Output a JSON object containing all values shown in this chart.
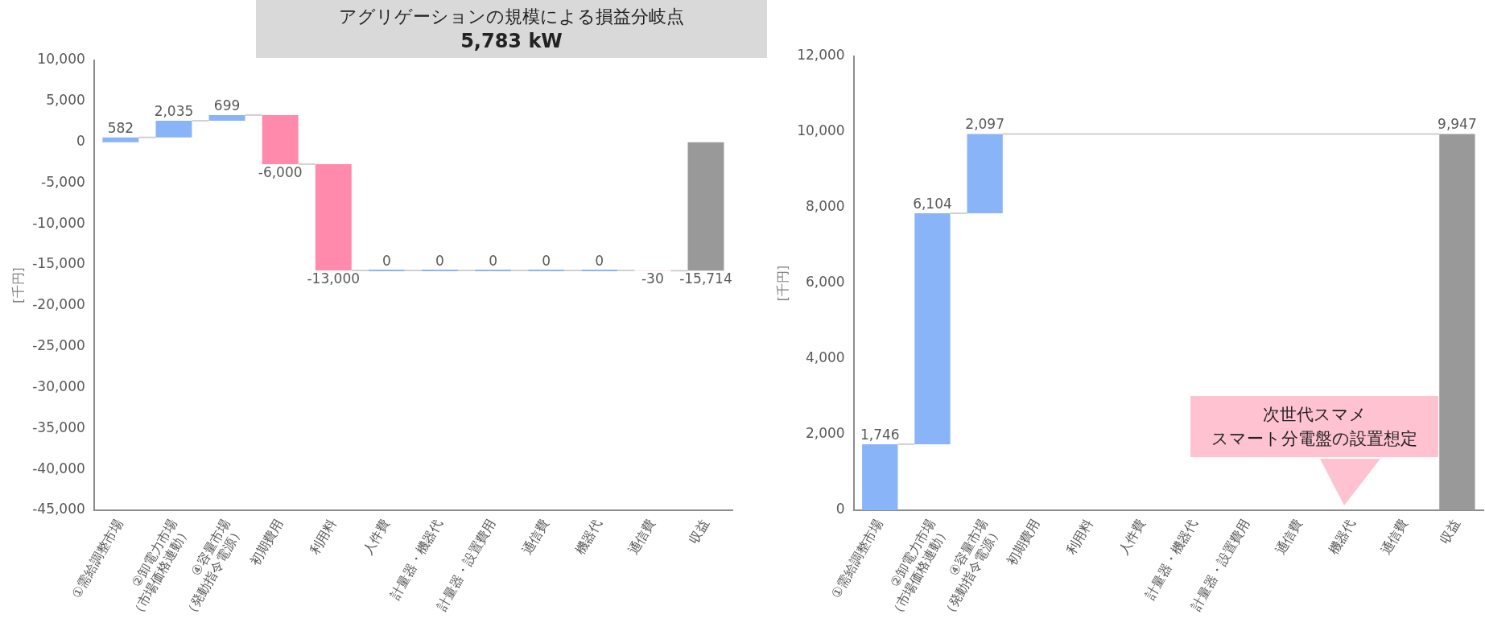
{
  "chart_data": [
    {
      "type": "bar",
      "title": "アグリゲーションの規模による損益分岐点",
      "subtitle": "5,783 kW",
      "ylabel": "[千円]",
      "categories": [
        "①需給調整市場",
        "②卸電力市場\n（市場価格連動）",
        "④容量市場\n（発動指令電源）",
        "初期費用",
        "利用料",
        "人件費",
        "計量器・機器代",
        "計量器・設置費用",
        "通信費",
        "機器代",
        "通信費",
        "収益"
      ],
      "values": [
        582,
        2035,
        699,
        -6000,
        -13000,
        0,
        0,
        0,
        0,
        0,
        -30,
        -15714
      ],
      "base": [
        0,
        582,
        2617,
        3316,
        -2684,
        -15684,
        -15684,
        -15684,
        -15684,
        -15684,
        -15684,
        0
      ],
      "value_labels": [
        "582",
        "2,035",
        "699",
        "-6,000",
        "-13,000",
        "0",
        "0",
        "0",
        "0",
        "0",
        "-30",
        "-15,714"
      ],
      "colors": [
        "#8ab4f8",
        "#8ab4f8",
        "#8ab4f8",
        "#ff8aab",
        "#ff8aab",
        "#8ab4f8",
        "#8ab4f8",
        "#8ab4f8",
        "#8ab4f8",
        "#8ab4f8",
        "#ff8aab",
        "#999999"
      ],
      "ylim": [
        -45000,
        10000
      ],
      "yticks": [
        {
          "value": -45000,
          "label": "-45,000"
        },
        {
          "value": -40000,
          "label": "-40,000"
        },
        {
          "value": -35000,
          "label": "-35,000"
        },
        {
          "value": -30000,
          "label": "-30,000"
        },
        {
          "value": -25000,
          "label": "-25,000"
        },
        {
          "value": -20000,
          "label": "-20,000"
        },
        {
          "value": -15000,
          "label": "-15,000"
        },
        {
          "value": -10000,
          "label": "-10,000"
        },
        {
          "value": -5000,
          "label": "-5,000"
        },
        {
          "value": 0,
          "label": "0"
        },
        {
          "value": 5000,
          "label": "5,000"
        },
        {
          "value": 10000,
          "label": "10,000"
        }
      ],
      "grid": false,
      "legend": false
    },
    {
      "type": "bar",
      "ylabel": "[千円]",
      "annotations": [
        "次世代スマメ",
        "スマート分電盤の設置想定"
      ],
      "categories": [
        "①需給調整市場",
        "②卸電力市場\n（市場価格連動）",
        "④容量市場\n（発動指令電源）",
        "初期費用",
        "利用料",
        "人件費",
        "計量器・機器代",
        "計量器・設置費用",
        "通信費",
        "機器代",
        "通信費",
        "収益"
      ],
      "values": [
        1746,
        6104,
        2097,
        null,
        null,
        null,
        null,
        null,
        null,
        null,
        null,
        9947
      ],
      "base": [
        0,
        1746,
        7850,
        null,
        null,
        null,
        null,
        null,
        null,
        null,
        null,
        0
      ],
      "value_labels": [
        "1,746",
        "6,104",
        "2,097",
        null,
        null,
        null,
        null,
        null,
        null,
        null,
        null,
        "9,947"
      ],
      "colors": [
        "#8ab4f8",
        "#8ab4f8",
        "#8ab4f8",
        "#8ab4f8",
        "#8ab4f8",
        "#8ab4f8",
        "#8ab4f8",
        "#8ab4f8",
        "#8ab4f8",
        "#8ab4f8",
        "#8ab4f8",
        "#999999"
      ],
      "ylim": [
        0,
        12000
      ],
      "yticks": [
        {
          "value": 0,
          "label": "0"
        },
        {
          "value": 2000,
          "label": "2,000"
        },
        {
          "value": 4000,
          "label": "4,000"
        },
        {
          "value": 6000,
          "label": "6,000"
        },
        {
          "value": 8000,
          "label": "8,000"
        },
        {
          "value": 10000,
          "label": "10,000"
        },
        {
          "value": 12000,
          "label": "12,000"
        }
      ],
      "grid": false,
      "legend": false
    }
  ]
}
